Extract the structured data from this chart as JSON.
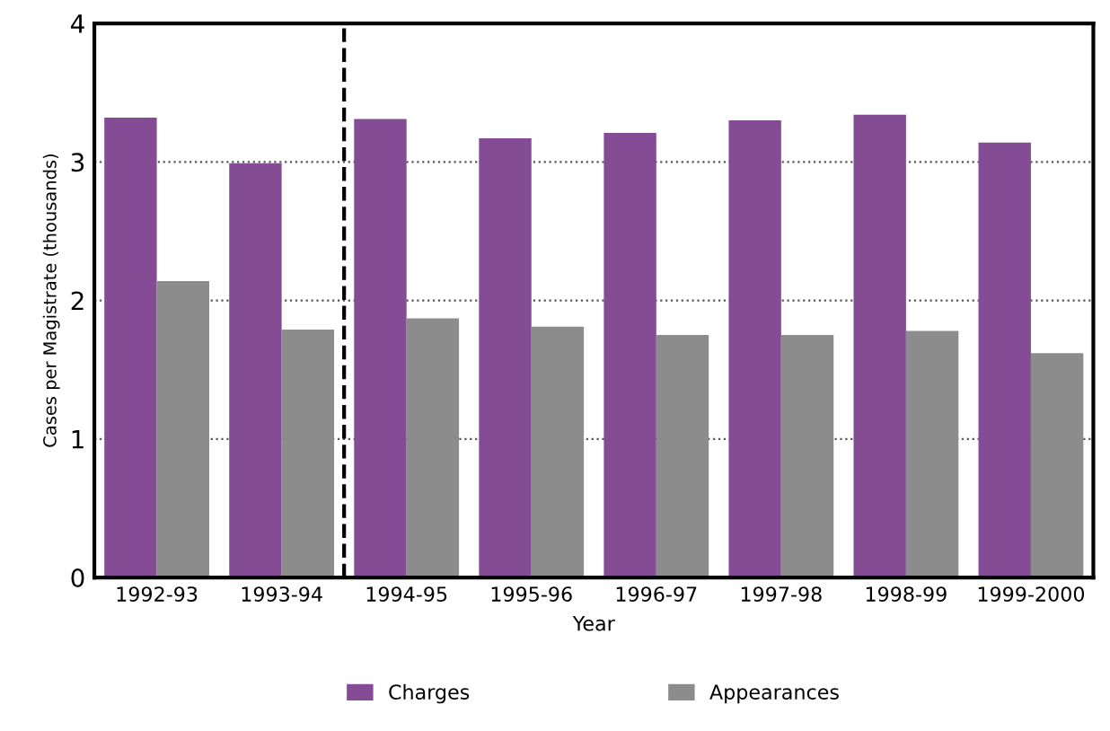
{
  "chart_data": {
    "type": "bar",
    "categories": [
      "1992-93",
      "1993-94",
      "1994-95",
      "1995-96",
      "1996-97",
      "1997-98",
      "1998-99",
      "1999-2000"
    ],
    "series": [
      {
        "name": "Charges",
        "color": "#844c94",
        "values": [
          3.32,
          2.99,
          3.31,
          3.17,
          3.21,
          3.3,
          3.34,
          3.14
        ]
      },
      {
        "name": "Appearances",
        "color": "#8c8c8c",
        "values": [
          2.14,
          1.79,
          1.87,
          1.81,
          1.75,
          1.75,
          1.78,
          1.62
        ]
      }
    ],
    "xlabel": "Year",
    "ylabel": "Cases per Magistrate (thousands)",
    "ylim": [
      0,
      4
    ],
    "yticks": [
      0,
      1,
      2,
      3,
      4
    ],
    "grid": "y",
    "legend": "bottom",
    "ref_lines": [
      {
        "axis": "x",
        "value": "1994-95",
        "color": "#000000",
        "line_style": "dashed"
      }
    ]
  }
}
